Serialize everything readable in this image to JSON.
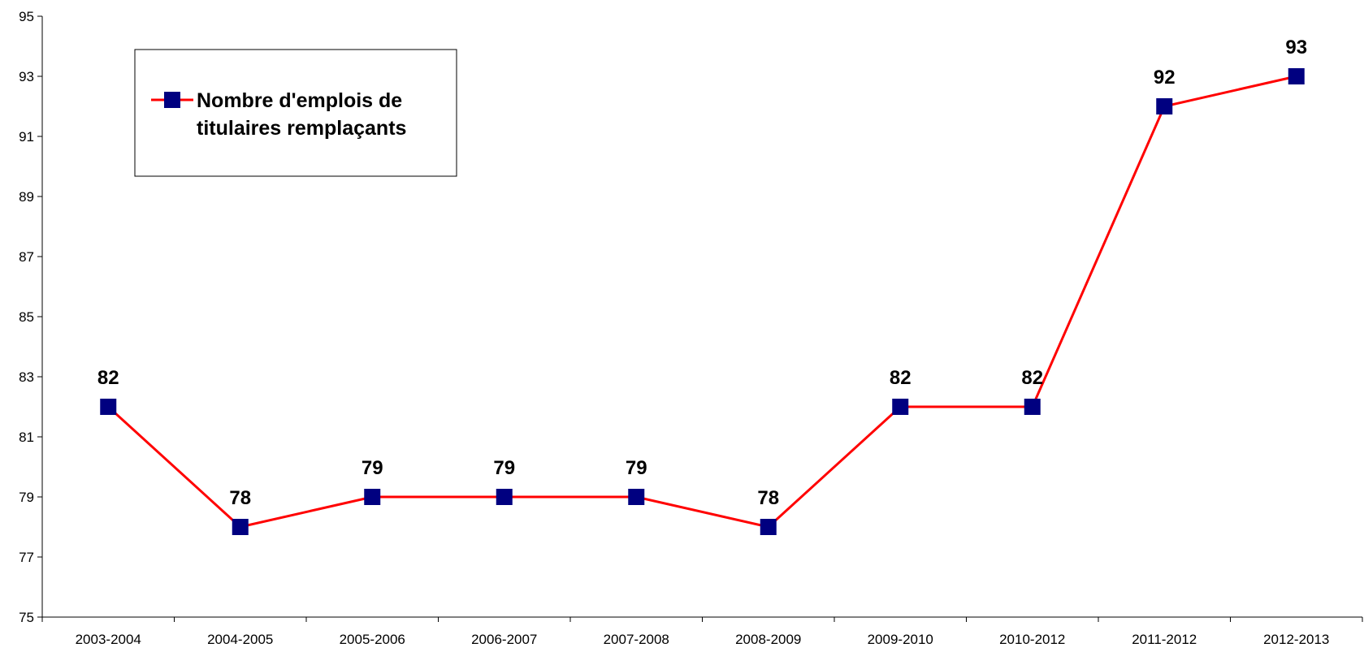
{
  "chart_data": {
    "type": "line",
    "title": "",
    "xlabel": "",
    "ylabel": "",
    "categories": [
      "2003-2004",
      "2004-2005",
      "2005-2006",
      "2006-2007",
      "2007-2008",
      "2008-2009",
      "2009-2010",
      "2010-2012",
      "2011-2012",
      "2012-2013"
    ],
    "series": [
      {
        "name": "Nombre d'emplois de titulaires remplaçants",
        "values": [
          82,
          78,
          79,
          79,
          79,
          78,
          82,
          82,
          92,
          93
        ],
        "line_color": "#ff0000",
        "marker_color": "#000080",
        "marker": "square"
      }
    ],
    "data_labels": [
      "82",
      "78",
      "79",
      "79",
      "79",
      "78",
      "82",
      "82",
      "92",
      "93"
    ],
    "ylim": [
      75,
      95
    ],
    "yticks": [
      75,
      77,
      79,
      81,
      83,
      85,
      87,
      89,
      91,
      93,
      95
    ],
    "ytick_labels": [
      "75",
      "77",
      "79",
      "81",
      "83",
      "85",
      "87",
      "89",
      "91",
      "93",
      "95"
    ],
    "grid": false,
    "legend": {
      "position": "top-left",
      "lines": [
        "Nombre d'emplois de",
        "titulaires remplaçants"
      ]
    }
  }
}
